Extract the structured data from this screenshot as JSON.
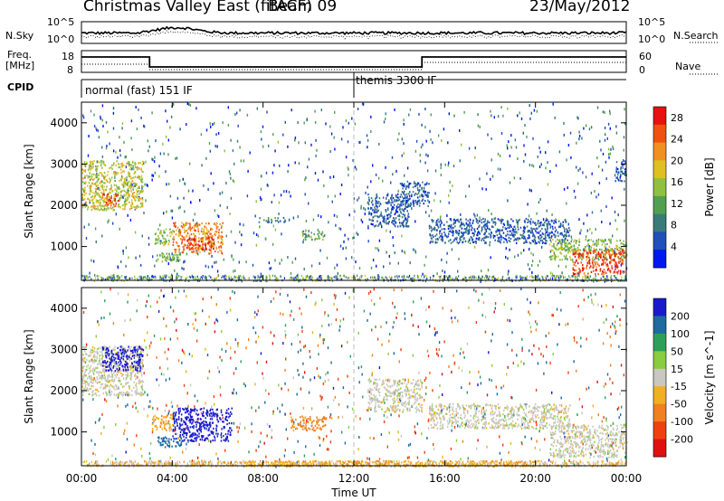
{
  "header": {
    "title": "Christmas Valley East (fitACF)",
    "beam": "Beam 09",
    "date": "23/May/2012"
  },
  "top_panel": {
    "left_label": "N.Sky",
    "right_label": "N.Search",
    "left_ticks": [
      "10^5",
      "10^0"
    ],
    "right_ticks": [
      "10^5",
      "10^0"
    ]
  },
  "freq_panel": {
    "left_label_line1": "Freq.",
    "left_label_line2": "[MHz]",
    "right_label": "Nave",
    "left_ticks": [
      "18",
      "8"
    ],
    "right_ticks": [
      "60",
      "0"
    ]
  },
  "cpid_panel": {
    "label": "CPID",
    "program1": "normal (fast) 151 IF",
    "program2": "themis 3300 IF"
  },
  "chart_data": [
    {
      "type": "heatmap",
      "title": "Power",
      "ylabel": "Slant Range [km]",
      "xlabel": "Time UT",
      "x_ticks": [
        "00:00",
        "04:00",
        "08:00",
        "12:00",
        "16:00",
        "20:00",
        "00:00"
      ],
      "xlim_hours": [
        0,
        24
      ],
      "ylim_km": [
        180,
        4500
      ],
      "y_ticks": [
        1000,
        2000,
        3000,
        4000
      ],
      "colorbar": {
        "label": "Power [dB]",
        "ticks": [
          4,
          8,
          12,
          16,
          20,
          24,
          28
        ],
        "range": [
          0,
          30
        ],
        "colors": [
          "#0018f0",
          "#2050b8",
          "#3a7a78",
          "#50a050",
          "#90c040",
          "#e0c020",
          "#f09020",
          "#f05010",
          "#e81010"
        ]
      },
      "regions": [
        {
          "t": [
            0.0,
            2.7
          ],
          "r": [
            1900,
            3100
          ],
          "v": 17
        },
        {
          "t": [
            0.9,
            1.6
          ],
          "r": [
            2000,
            2300
          ],
          "v": 25
        },
        {
          "t": [
            3.2,
            4.0
          ],
          "r": [
            1050,
            1450
          ],
          "v": 15
        },
        {
          "t": [
            3.3,
            4.4
          ],
          "r": [
            650,
            900
          ],
          "v": 13
        },
        {
          "t": [
            4.0,
            6.2
          ],
          "r": [
            850,
            1600
          ],
          "v": 22
        },
        {
          "t": [
            4.6,
            5.8
          ],
          "r": [
            950,
            1250
          ],
          "v": 28
        },
        {
          "t": [
            9.7,
            10.7
          ],
          "r": [
            1180,
            1420
          ],
          "v": 12
        },
        {
          "t": [
            7.8,
            9.0
          ],
          "r": [
            1600,
            1720
          ],
          "v": 8
        },
        {
          "t": [
            12.6,
            14.4
          ],
          "r": [
            1500,
            2300
          ],
          "v": 6
        },
        {
          "t": [
            14.0,
            15.3
          ],
          "r": [
            2000,
            2600
          ],
          "v": 6
        },
        {
          "t": [
            15.3,
            21.5
          ],
          "r": [
            1100,
            1700
          ],
          "v": 6
        },
        {
          "t": [
            20.6,
            24.0
          ],
          "r": [
            700,
            1200
          ],
          "v": 14
        },
        {
          "t": [
            21.6,
            23.9
          ],
          "r": [
            350,
            950
          ],
          "v": 26
        },
        {
          "t": [
            23.5,
            24.0
          ],
          "r": [
            2600,
            3100
          ],
          "v": 6
        }
      ]
    },
    {
      "type": "heatmap",
      "title": "Velocity",
      "ylabel": "Slant Range [km]",
      "xlabel": "Time UT",
      "x_ticks": [
        "00:00",
        "04:00",
        "08:00",
        "12:00",
        "16:00",
        "20:00",
        "00:00"
      ],
      "xlim_hours": [
        0,
        24
      ],
      "ylim_km": [
        180,
        4500
      ],
      "y_ticks": [
        1000,
        2000,
        3000,
        4000
      ],
      "colorbar": {
        "label": "Velocity [m s^-1]",
        "ticks": [
          200,
          100,
          50,
          15,
          -15,
          -50,
          -100,
          -200
        ],
        "colors": [
          "#1a1acc",
          "#1f6a9f",
          "#2ca058",
          "#88cc40",
          "#c8c8c0",
          "#f0b020",
          "#f08020",
          "#f04010",
          "#e01010"
        ]
      },
      "regions": [
        {
          "t": [
            0.0,
            2.7
          ],
          "r": [
            1900,
            3100
          ],
          "v": 0
        },
        {
          "t": [
            0.9,
            2.7
          ],
          "r": [
            2500,
            3100
          ],
          "v": 250
        },
        {
          "t": [
            4.0,
            6.6
          ],
          "r": [
            800,
            1600
          ],
          "v": 250
        },
        {
          "t": [
            3.3,
            4.4
          ],
          "r": [
            650,
            900
          ],
          "v": 180
        },
        {
          "t": [
            3.1,
            4.0
          ],
          "r": [
            1050,
            1450
          ],
          "v": -40
        },
        {
          "t": [
            9.2,
            10.8
          ],
          "r": [
            1050,
            1400
          ],
          "v": -60
        },
        {
          "t": [
            12.6,
            15.0
          ],
          "r": [
            1500,
            2300
          ],
          "v": 0
        },
        {
          "t": [
            15.3,
            21.5
          ],
          "r": [
            1100,
            1700
          ],
          "v": 0
        },
        {
          "t": [
            20.6,
            24.0
          ],
          "r": [
            400,
            1200
          ],
          "v": 0
        },
        {
          "t": [
            7.0,
            20.0
          ],
          "r": [
            180,
            320
          ],
          "v": -40
        }
      ]
    }
  ]
}
